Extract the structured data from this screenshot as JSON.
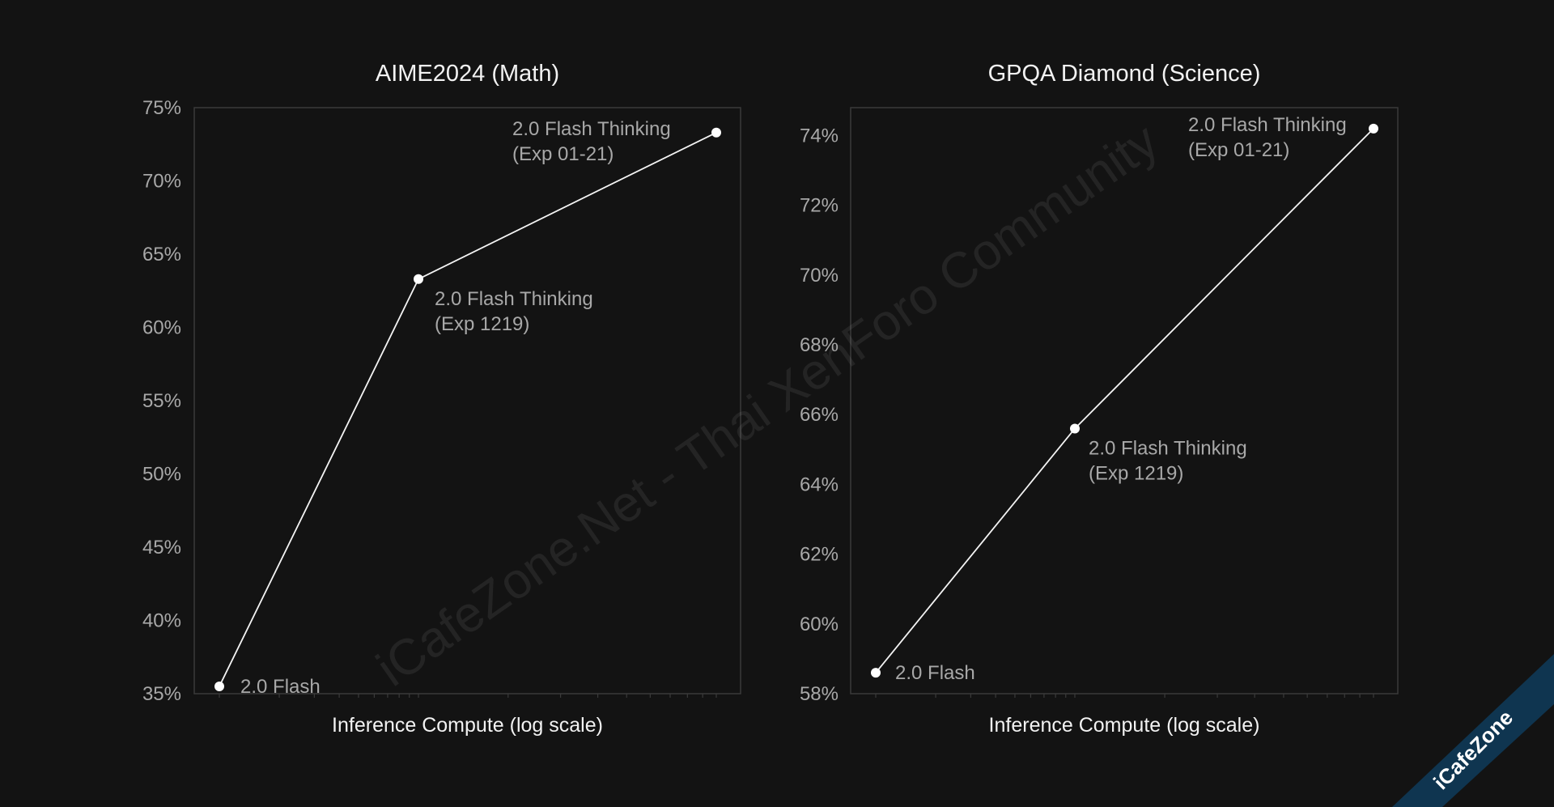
{
  "chart_data": [
    {
      "type": "line",
      "title": "AIME2024 (Math)",
      "xlabel": "Inference Compute (log scale)",
      "ylabel": "",
      "x_scale": "log",
      "ylim": [
        35,
        75
      ],
      "yticks": [
        35,
        40,
        45,
        50,
        55,
        60,
        65,
        70,
        75
      ],
      "ytick_labels": [
        "35%",
        "40%",
        "45%",
        "50%",
        "55%",
        "60%",
        "65%",
        "70%",
        "75%"
      ],
      "grid": false,
      "points": [
        {
          "label_lines": [
            "2.0 Flash"
          ],
          "y": 35.5
        },
        {
          "label_lines": [
            "2.0 Flash Thinking",
            "(Exp 1219)"
          ],
          "y": 63.3
        },
        {
          "label_lines": [
            "2.0 Flash Thinking",
            "(Exp 01-21)"
          ],
          "y": 73.3
        }
      ]
    },
    {
      "type": "line",
      "title": "GPQA Diamond (Science)",
      "xlabel": "Inference Compute (log scale)",
      "ylabel": "",
      "x_scale": "log",
      "ylim": [
        58,
        74.8
      ],
      "yticks": [
        58,
        60,
        62,
        64,
        66,
        68,
        70,
        72,
        74
      ],
      "ytick_labels": [
        "58%",
        "60%",
        "62%",
        "64%",
        "66%",
        "68%",
        "70%",
        "72%",
        "74%"
      ],
      "grid": false,
      "points": [
        {
          "label_lines": [
            "2.0 Flash"
          ],
          "y": 58.6
        },
        {
          "label_lines": [
            "2.0 Flash Thinking",
            "(Exp 1219)"
          ],
          "y": 65.6
        },
        {
          "label_lines": [
            "2.0 Flash Thinking",
            "(Exp 01-21)"
          ],
          "y": 74.2
        }
      ]
    }
  ],
  "watermark": {
    "text": "iCafeZone.Net - Thai XenForo Community",
    "corner_text": "iCafeZone"
  },
  "colors": {
    "background": "#131313",
    "line": "#f4f4f4",
    "point": "#ffffff",
    "title_text": "#f2f2f2",
    "label_text": "#a8a8a8",
    "frame": "#3a3a3a",
    "corner_band": "#0f3550"
  }
}
